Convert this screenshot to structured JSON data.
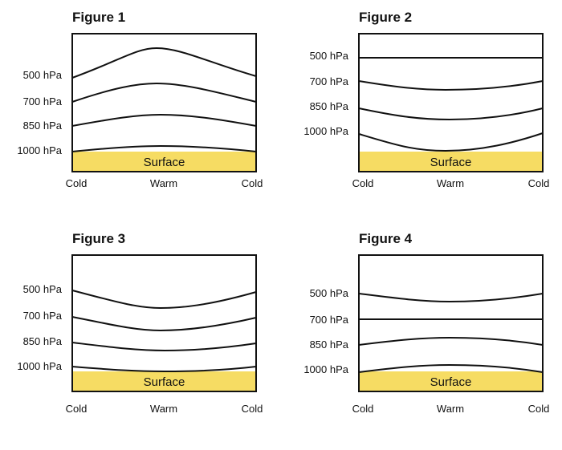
{
  "surface_color": "#f6dc63",
  "line_color": "#111111",
  "surface_label": "Surface",
  "x_labels": [
    "Cold",
    "Warm",
    "Cold"
  ],
  "figures": [
    {
      "title": "Figure 1",
      "levels": [
        "500 hPa",
        "700 hPa",
        "850 hPa",
        "1000 hPa"
      ],
      "description": "thickness maximum over warm region"
    },
    {
      "title": "Figure 2",
      "levels": [
        "500 hPa",
        "700 hPa",
        "850 hPa",
        "1000 hPa"
      ],
      "description": "surfaces dip over warm region, 500 hPa flat"
    },
    {
      "title": "Figure 3",
      "levels": [
        "500 hPa",
        "700 hPa",
        "850 hPa",
        "1000 hPa"
      ],
      "description": "surfaces dip over warm region"
    },
    {
      "title": "Figure 4",
      "levels": [
        "500 hPa",
        "700 hPa",
        "850 hPa",
        "1000 hPa"
      ],
      "description": "mixed curvature, 700 hPa flat"
    }
  ]
}
